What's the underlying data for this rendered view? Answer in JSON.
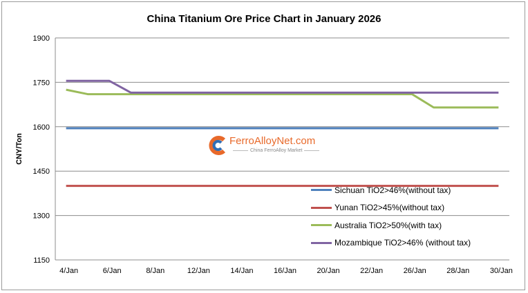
{
  "chart_data": {
    "type": "line",
    "title": "China Titanium Ore Price Chart in January 2026",
    "ylabel": "CNY/Ton",
    "xlabel": "",
    "ylim": [
      1150,
      1900
    ],
    "yticks": [
      1150,
      1300,
      1450,
      1600,
      1750,
      1900
    ],
    "grid": "horizontal",
    "legend": "bottom-right (inside plot)",
    "categories": [
      "4/Jan",
      "5/Jan",
      "6/Jan",
      "7/Jan",
      "8/Jan",
      "9/Jan",
      "12/Jan",
      "13/Jan",
      "14/Jan",
      "15/Jan",
      "16/Jan",
      "19/Jan",
      "20/Jan",
      "21/Jan",
      "22/Jan",
      "23/Jan",
      "26/Jan",
      "27/Jan",
      "28/Jan",
      "29/Jan",
      "30/Jan"
    ],
    "xtick_labels": [
      "4/Jan",
      "6/Jan",
      "8/Jan",
      "12/Jan",
      "14/Jan",
      "16/Jan",
      "20/Jan",
      "22/Jan",
      "26/Jan",
      "28/Jan",
      "30/Jan"
    ],
    "series": [
      {
        "name": "Sichuan TiO2>46%(without tax)",
        "color": "#4f81bd",
        "values": [
          1595,
          1595,
          1595,
          1595,
          1595,
          1595,
          1595,
          1595,
          1595,
          1595,
          1595,
          1595,
          1595,
          1595,
          1595,
          1595,
          1595,
          1595,
          1595,
          1595,
          1595
        ]
      },
      {
        "name": "Yunan TiO2>45%(without tax)",
        "color": "#c0504d",
        "values": [
          1400,
          1400,
          1400,
          1400,
          1400,
          1400,
          1400,
          1400,
          1400,
          1400,
          1400,
          1400,
          1400,
          1400,
          1400,
          1400,
          1400,
          1400,
          1400,
          1400,
          1400
        ]
      },
      {
        "name": "Australia TiO2>50%(with tax)",
        "color": "#9bbb59",
        "values": [
          1725,
          1710,
          1710,
          1710,
          1710,
          1710,
          1710,
          1710,
          1710,
          1710,
          1710,
          1710,
          1710,
          1710,
          1710,
          1710,
          1710,
          1665,
          1665,
          1665,
          1665
        ]
      },
      {
        "name": "Mozambique TiO2>46% (without tax)",
        "color": "#8064a2",
        "values": [
          1755,
          1755,
          1755,
          1715,
          1715,
          1715,
          1715,
          1715,
          1715,
          1715,
          1715,
          1715,
          1715,
          1715,
          1715,
          1715,
          1715,
          1715,
          1715,
          1715,
          1715
        ]
      }
    ]
  },
  "watermark": {
    "brand": "FerroAlloyNet.com",
    "tagline": "China FerroAlloy Market"
  }
}
